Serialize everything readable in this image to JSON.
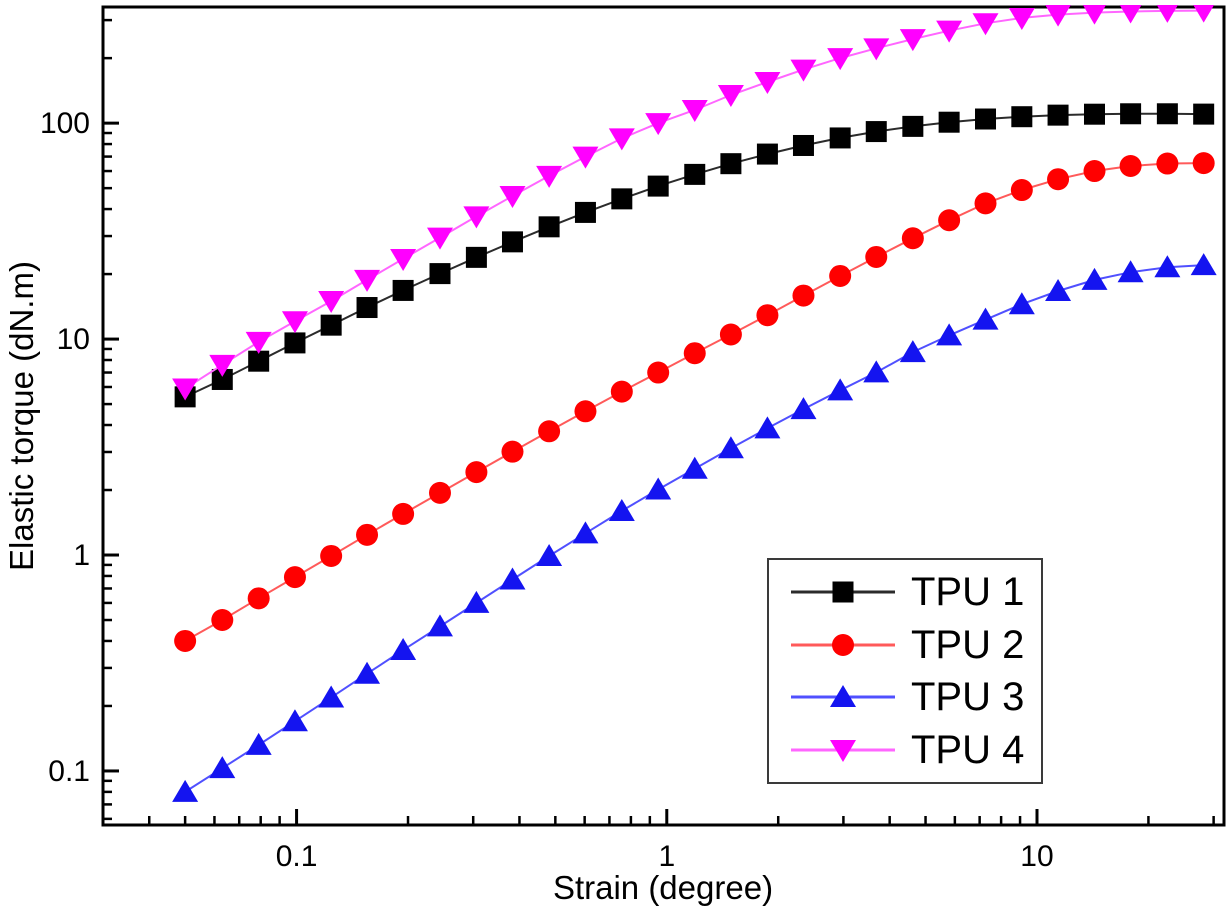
{
  "figure": {
    "background": "#ffffff",
    "frame_color": "#000000",
    "text_color": "#000000"
  },
  "chart_data": {
    "type": "line",
    "x_scale": "log",
    "y_scale": "log",
    "xlabel": "Strain (degree)",
    "ylabel": "Elastic torque (dN.m)",
    "xlim": [
      0.03,
      32
    ],
    "ylim": [
      0.0562,
      345
    ],
    "x_major_ticks": [
      0.1,
      1,
      10
    ],
    "y_major_ticks": [
      0.1,
      1,
      10,
      100
    ],
    "x_tick_labels": [
      "0.1",
      "1",
      "10"
    ],
    "y_tick_labels": [
      "0.1",
      "1",
      "10",
      "100"
    ],
    "grid": false,
    "legend_position": "lower right",
    "x": [
      0.05,
      0.063,
      0.079,
      0.099,
      0.124,
      0.155,
      0.194,
      0.244,
      0.306,
      0.383,
      0.481,
      0.603,
      0.756,
      0.948,
      1.19,
      1.49,
      1.87,
      2.34,
      2.94,
      3.68,
      4.62,
      5.79,
      7.26,
      9.1,
      11.4,
      14.3,
      17.9,
      22.5,
      28.2
    ],
    "series": [
      {
        "name": "TPU 1",
        "marker": "square",
        "color": "#000000",
        "line_color": "#2b2b2b",
        "values": [
          5.4,
          6.5,
          7.9,
          9.6,
          11.6,
          14.0,
          16.8,
          20.1,
          23.9,
          28.2,
          33.1,
          38.6,
          44.6,
          51.1,
          57.9,
          64.9,
          71.9,
          78.8,
          85.4,
          91.4,
          96.6,
          101.0,
          104.5,
          107.1,
          108.9,
          110.0,
          110.5,
          110.5,
          110.1
        ]
      },
      {
        "name": "TPU 2",
        "marker": "circle",
        "color": "#ff0000",
        "line_color": "#ff5a5a",
        "values": [
          0.4,
          0.5,
          0.63,
          0.79,
          0.99,
          1.24,
          1.55,
          1.94,
          2.42,
          3.01,
          3.74,
          4.63,
          5.71,
          7.0,
          8.6,
          10.5,
          12.9,
          15.9,
          19.6,
          24.0,
          29.3,
          35.5,
          42.5,
          49.0,
          55.0,
          60.0,
          63.3,
          65.0,
          65.3
        ]
      },
      {
        "name": "TPU 3",
        "marker": "triangle-up",
        "color": "#1414f0",
        "line_color": "#5050ff",
        "values": [
          0.08,
          0.103,
          0.132,
          0.17,
          0.219,
          0.282,
          0.363,
          0.467,
          0.6,
          0.77,
          0.99,
          1.26,
          1.6,
          2.01,
          2.51,
          3.12,
          3.86,
          4.74,
          5.79,
          7.01,
          8.7,
          10.4,
          12.3,
          14.5,
          16.7,
          18.8,
          20.4,
          21.5,
          22.0
        ]
      },
      {
        "name": "TPU 4",
        "marker": "triangle-down",
        "color": "#ff00ff",
        "line_color": "#ff66ff",
        "values": [
          5.9,
          7.6,
          9.7,
          12.1,
          15.0,
          18.8,
          23.5,
          29.5,
          37.0,
          46.0,
          57.0,
          70.0,
          85.0,
          100.0,
          115.0,
          135.0,
          155.0,
          177.0,
          200.0,
          222.0,
          245.0,
          268.0,
          290.0,
          307.0,
          318.0,
          325.0,
          329.0,
          331.0,
          332.0
        ]
      }
    ]
  }
}
